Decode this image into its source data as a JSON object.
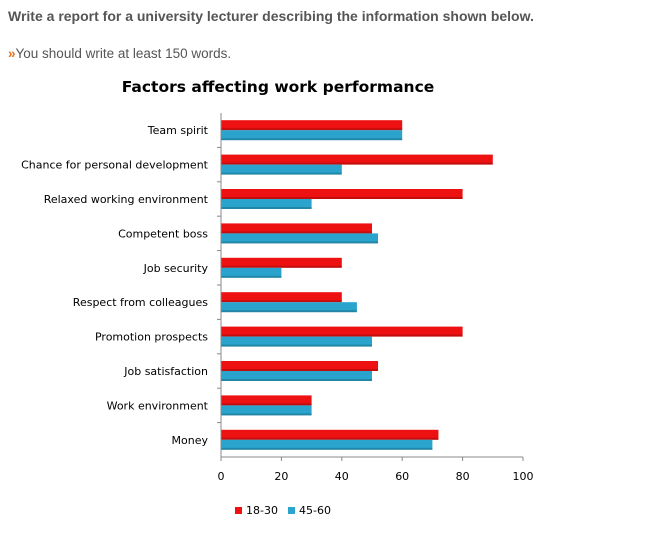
{
  "prompt": {
    "instruction": "Write a report for a university lecturer describing the information shown below.",
    "bullet_symbol": "»",
    "min_words": "You should write at least 150 words."
  },
  "chart_data": {
    "type": "bar",
    "orientation": "horizontal",
    "title": "Factors affecting work performance",
    "xlabel": "",
    "ylabel": "",
    "xlim": [
      0,
      100
    ],
    "xticks": [
      0,
      20,
      40,
      60,
      80,
      100
    ],
    "categories": [
      "Team spirit",
      "Chance for personal development",
      "Relaxed working environment",
      "Competent boss",
      "Job security",
      "Respect from colleagues",
      "Promotion prospects",
      "Job satisfaction",
      "Work environment",
      "Money"
    ],
    "series": [
      {
        "name": "18-30",
        "color": "#ee1111",
        "values": [
          60,
          90,
          80,
          50,
          40,
          40,
          80,
          52,
          30,
          72
        ]
      },
      {
        "name": "45-60",
        "color": "#2aa4cc",
        "values": [
          60,
          40,
          30,
          52,
          20,
          45,
          50,
          50,
          30,
          70
        ]
      }
    ],
    "legend_position": "bottom-left",
    "grid": false
  }
}
